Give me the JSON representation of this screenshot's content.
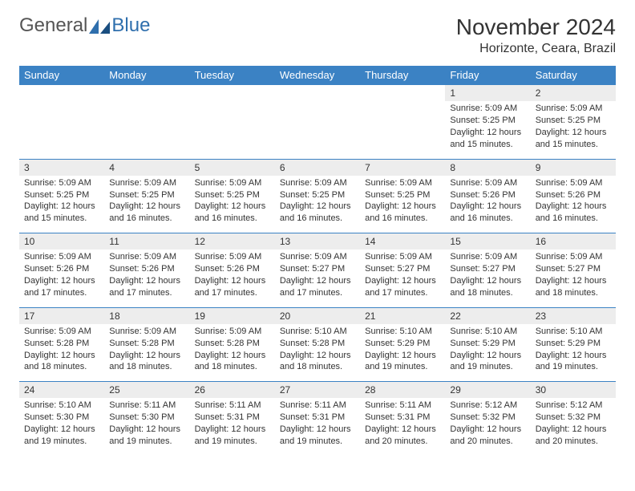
{
  "logo": {
    "text1": "General",
    "text2": "Blue"
  },
  "title": "November 2024",
  "location": "Horizonte, Ceara, Brazil",
  "colors": {
    "header_bg": "#3b82c4",
    "header_text": "#ffffff",
    "daynum_bg": "#ededed",
    "border": "#3b82c4",
    "logo_gray": "#555555",
    "logo_blue": "#2f6fad"
  },
  "weekdays": [
    "Sunday",
    "Monday",
    "Tuesday",
    "Wednesday",
    "Thursday",
    "Friday",
    "Saturday"
  ],
  "weeks": [
    [
      null,
      null,
      null,
      null,
      null,
      {
        "n": "1",
        "sr": "5:09 AM",
        "ss": "5:25 PM",
        "dl": "12 hours and 15 minutes."
      },
      {
        "n": "2",
        "sr": "5:09 AM",
        "ss": "5:25 PM",
        "dl": "12 hours and 15 minutes."
      }
    ],
    [
      {
        "n": "3",
        "sr": "5:09 AM",
        "ss": "5:25 PM",
        "dl": "12 hours and 15 minutes."
      },
      {
        "n": "4",
        "sr": "5:09 AM",
        "ss": "5:25 PM",
        "dl": "12 hours and 16 minutes."
      },
      {
        "n": "5",
        "sr": "5:09 AM",
        "ss": "5:25 PM",
        "dl": "12 hours and 16 minutes."
      },
      {
        "n": "6",
        "sr": "5:09 AM",
        "ss": "5:25 PM",
        "dl": "12 hours and 16 minutes."
      },
      {
        "n": "7",
        "sr": "5:09 AM",
        "ss": "5:25 PM",
        "dl": "12 hours and 16 minutes."
      },
      {
        "n": "8",
        "sr": "5:09 AM",
        "ss": "5:26 PM",
        "dl": "12 hours and 16 minutes."
      },
      {
        "n": "9",
        "sr": "5:09 AM",
        "ss": "5:26 PM",
        "dl": "12 hours and 16 minutes."
      }
    ],
    [
      {
        "n": "10",
        "sr": "5:09 AM",
        "ss": "5:26 PM",
        "dl": "12 hours and 17 minutes."
      },
      {
        "n": "11",
        "sr": "5:09 AM",
        "ss": "5:26 PM",
        "dl": "12 hours and 17 minutes."
      },
      {
        "n": "12",
        "sr": "5:09 AM",
        "ss": "5:26 PM",
        "dl": "12 hours and 17 minutes."
      },
      {
        "n": "13",
        "sr": "5:09 AM",
        "ss": "5:27 PM",
        "dl": "12 hours and 17 minutes."
      },
      {
        "n": "14",
        "sr": "5:09 AM",
        "ss": "5:27 PM",
        "dl": "12 hours and 17 minutes."
      },
      {
        "n": "15",
        "sr": "5:09 AM",
        "ss": "5:27 PM",
        "dl": "12 hours and 18 minutes."
      },
      {
        "n": "16",
        "sr": "5:09 AM",
        "ss": "5:27 PM",
        "dl": "12 hours and 18 minutes."
      }
    ],
    [
      {
        "n": "17",
        "sr": "5:09 AM",
        "ss": "5:28 PM",
        "dl": "12 hours and 18 minutes."
      },
      {
        "n": "18",
        "sr": "5:09 AM",
        "ss": "5:28 PM",
        "dl": "12 hours and 18 minutes."
      },
      {
        "n": "19",
        "sr": "5:09 AM",
        "ss": "5:28 PM",
        "dl": "12 hours and 18 minutes."
      },
      {
        "n": "20",
        "sr": "5:10 AM",
        "ss": "5:28 PM",
        "dl": "12 hours and 18 minutes."
      },
      {
        "n": "21",
        "sr": "5:10 AM",
        "ss": "5:29 PM",
        "dl": "12 hours and 19 minutes."
      },
      {
        "n": "22",
        "sr": "5:10 AM",
        "ss": "5:29 PM",
        "dl": "12 hours and 19 minutes."
      },
      {
        "n": "23",
        "sr": "5:10 AM",
        "ss": "5:29 PM",
        "dl": "12 hours and 19 minutes."
      }
    ],
    [
      {
        "n": "24",
        "sr": "5:10 AM",
        "ss": "5:30 PM",
        "dl": "12 hours and 19 minutes."
      },
      {
        "n": "25",
        "sr": "5:11 AM",
        "ss": "5:30 PM",
        "dl": "12 hours and 19 minutes."
      },
      {
        "n": "26",
        "sr": "5:11 AM",
        "ss": "5:31 PM",
        "dl": "12 hours and 19 minutes."
      },
      {
        "n": "27",
        "sr": "5:11 AM",
        "ss": "5:31 PM",
        "dl": "12 hours and 19 minutes."
      },
      {
        "n": "28",
        "sr": "5:11 AM",
        "ss": "5:31 PM",
        "dl": "12 hours and 20 minutes."
      },
      {
        "n": "29",
        "sr": "5:12 AM",
        "ss": "5:32 PM",
        "dl": "12 hours and 20 minutes."
      },
      {
        "n": "30",
        "sr": "5:12 AM",
        "ss": "5:32 PM",
        "dl": "12 hours and 20 minutes."
      }
    ]
  ],
  "labels": {
    "sunrise": "Sunrise:",
    "sunset": "Sunset:",
    "daylight": "Daylight:"
  }
}
